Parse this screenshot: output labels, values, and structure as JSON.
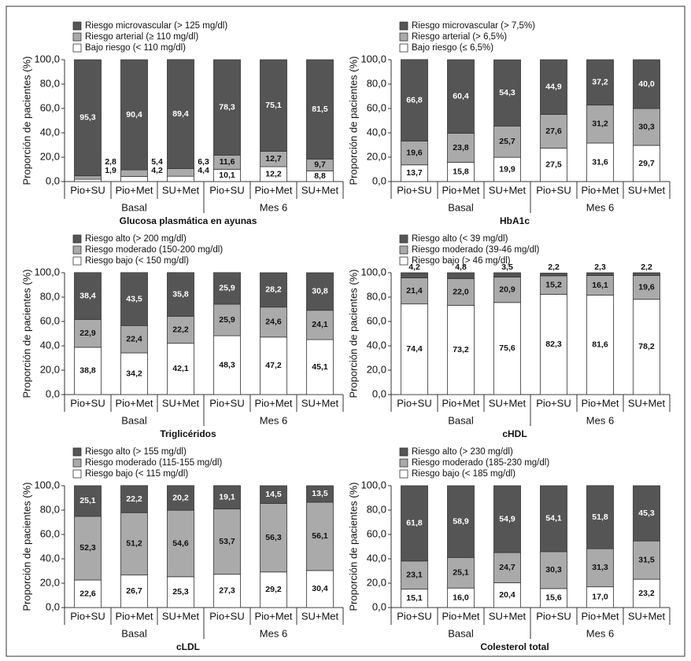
{
  "chart_data": [
    {
      "type": "bar",
      "stacked": true,
      "title": "Glucosa plasmática en ayunas",
      "ylabel": "Proporción de pacientes (%)",
      "categories": [
        "Pio+SU",
        "Pio+Met",
        "SU+Met",
        "Pio+SU",
        "Pio+Met",
        "SU+Met"
      ],
      "groups": [
        "Basal",
        "Mes 6"
      ],
      "ylim": [
        0,
        100
      ],
      "yticks": [
        {
          "value": 0,
          "label": "0,0"
        },
        {
          "value": 20,
          "label": "20,0"
        },
        {
          "value": 40,
          "label": "40,0"
        },
        {
          "value": 60,
          "label": "60,0"
        },
        {
          "value": 80,
          "label": "80,0"
        },
        {
          "value": 100,
          "label": "100,0"
        }
      ],
      "series": [
        {
          "name": "Riesgo microvascular (> 125 mg/dl)",
          "color": "#555555",
          "values": [
            95.3,
            90.4,
            89.4,
            78.3,
            75.1,
            81.5
          ],
          "value_labels": [
            "95,3",
            "90,4",
            "89,4",
            "78,3",
            "75,1",
            "81,5"
          ]
        },
        {
          "name": "Riesgo arterial (≥ 110 mg/dl)",
          "color": "#aaaaaa",
          "values": [
            2.8,
            5.4,
            6.3,
            11.6,
            12.7,
            9.7
          ],
          "value_labels": [
            "2,8",
            "5,4",
            "6,3",
            "11,6",
            "12,7",
            "9,7"
          ]
        },
        {
          "name": "Bajo riesgo (< 110 mg/dl)",
          "color": "#ffffff",
          "values": [
            1.9,
            4.2,
            4.4,
            10.1,
            12.2,
            8.8
          ],
          "value_labels": [
            "1,9",
            "4,2",
            "4,4",
            "10,1",
            "12,2",
            "8,8"
          ]
        }
      ]
    },
    {
      "type": "bar",
      "stacked": true,
      "title": "HbA1c",
      "ylabel": "Proporción de pacientes (%)",
      "categories": [
        "Pio+SU",
        "Pio+Met",
        "SU+Met",
        "Pio+SU",
        "Pio+Met",
        "SU+Met"
      ],
      "groups": [
        "Basal",
        "Mes 6"
      ],
      "ylim": [
        0,
        100
      ],
      "yticks": [
        {
          "value": 0,
          "label": "0,0"
        },
        {
          "value": 20,
          "label": "20,0"
        },
        {
          "value": 40,
          "label": "40,0"
        },
        {
          "value": 60,
          "label": "60,0"
        },
        {
          "value": 80,
          "label": "80,0"
        },
        {
          "value": 100,
          "label": "100,0"
        }
      ],
      "series": [
        {
          "name": "Riesgo microvascular (> 7,5%)",
          "color": "#555555",
          "values": [
            66.8,
            60.4,
            54.3,
            44.9,
            37.2,
            40.0
          ],
          "value_labels": [
            "66,8",
            "60,4",
            "54,3",
            "44,9",
            "37,2",
            "40,0"
          ]
        },
        {
          "name": "Riesgo arterial (> 6,5%)",
          "color": "#aaaaaa",
          "values": [
            19.6,
            23.8,
            25.7,
            27.6,
            31.2,
            30.3
          ],
          "value_labels": [
            "19,6",
            "23,8",
            "25,7",
            "27,6",
            "31,2",
            "30,3"
          ]
        },
        {
          "name": "Bajo riesgo (≤ 6,5%)",
          "color": "#ffffff",
          "values": [
            13.7,
            15.8,
            19.9,
            27.5,
            31.6,
            29.7
          ],
          "value_labels": [
            "13,7",
            "15,8",
            "19,9",
            "27,5",
            "31,6",
            "29,7"
          ]
        }
      ]
    },
    {
      "type": "bar",
      "stacked": true,
      "title": "Triglicéridos",
      "ylabel": "Proporción de pacientes (%)",
      "categories": [
        "Pio+SU",
        "Pio+Met",
        "SU+Met",
        "Pio+SU",
        "Pio+Met",
        "SU+Met"
      ],
      "groups": [
        "Basal",
        "Mes 6"
      ],
      "ylim": [
        0,
        100
      ],
      "yticks": [
        {
          "value": 0,
          "label": "0,0"
        },
        {
          "value": 20,
          "label": "20,0"
        },
        {
          "value": 40,
          "label": "40,0"
        },
        {
          "value": 60,
          "label": "60,0"
        },
        {
          "value": 80,
          "label": "80,0"
        },
        {
          "value": 100,
          "label": "100,0"
        }
      ],
      "series": [
        {
          "name": "Riesgo alto (> 200 mg/dl)",
          "color": "#555555",
          "values": [
            38.4,
            43.5,
            35.8,
            25.9,
            28.2,
            30.8
          ],
          "value_labels": [
            "38,4",
            "43,5",
            "35,8",
            "25,9",
            "28,2",
            "30,8"
          ]
        },
        {
          "name": "Riesgo moderado (150-200 mg/dl)",
          "color": "#aaaaaa",
          "values": [
            22.9,
            22.4,
            22.2,
            25.9,
            24.6,
            24.1
          ],
          "value_labels": [
            "22,9",
            "22,4",
            "22,2",
            "25,9",
            "24,6",
            "24,1"
          ]
        },
        {
          "name": "Riesgo bajo (< 150 mg/dl)",
          "color": "#ffffff",
          "values": [
            38.8,
            34.2,
            42.1,
            48.3,
            47.2,
            45.1
          ],
          "value_labels": [
            "38,8",
            "34,2",
            "42,1",
            "48,3",
            "47,2",
            "45,1"
          ]
        }
      ]
    },
    {
      "type": "bar",
      "stacked": true,
      "title": "cHDL",
      "ylabel": "Proporción de pacientes (%)",
      "categories": [
        "Pio+SU",
        "Pio+Met",
        "SU+Met",
        "Pio+SU",
        "Pio+Met",
        "SU+Met"
      ],
      "groups": [
        "Basal",
        "Mes 6"
      ],
      "ylim": [
        0,
        100
      ],
      "yticks": [
        {
          "value": 0,
          "label": "0,0"
        },
        {
          "value": 20,
          "label": "20,0"
        },
        {
          "value": 40,
          "label": "40,0"
        },
        {
          "value": 60,
          "label": "60,0"
        },
        {
          "value": 80,
          "label": "80,0"
        },
        {
          "value": 100,
          "label": "100,0"
        }
      ],
      "series": [
        {
          "name": "Riesgo alto (< 39 mg/dl)",
          "color": "#555555",
          "values": [
            4.2,
            4.8,
            3.5,
            2.2,
            2.3,
            2.2
          ],
          "value_labels": [
            "4,2",
            "4,8",
            "3,5",
            "2,2",
            "2,3",
            "2,2"
          ]
        },
        {
          "name": "Riesgo moderado (39-46 mg/dl)",
          "color": "#aaaaaa",
          "values": [
            21.4,
            22.0,
            20.9,
            15.2,
            16.1,
            19.6
          ],
          "value_labels": [
            "21,4",
            "22,0",
            "20,9",
            "15,2",
            "16,1",
            "19,6"
          ]
        },
        {
          "name": "Riesgo bajo (> 46 mg/dl)",
          "color": "#ffffff",
          "values": [
            74.4,
            73.2,
            75.6,
            82.3,
            81.6,
            78.2
          ],
          "value_labels": [
            "74,4",
            "73,2",
            "75,6",
            "82,3",
            "81,6",
            "78,2"
          ]
        }
      ]
    },
    {
      "type": "bar",
      "stacked": true,
      "title": "cLDL",
      "ylabel": "Proporción de pacientes (%)",
      "categories": [
        "Pio+SU",
        "Pio+Met",
        "SU+Met",
        "Pio+SU",
        "Pio+Met",
        "SU+Met"
      ],
      "groups": [
        "Basal",
        "Mes 6"
      ],
      "ylim": [
        0,
        100
      ],
      "yticks": [
        {
          "value": 0,
          "label": "0,0"
        },
        {
          "value": 20,
          "label": "20,0"
        },
        {
          "value": 40,
          "label": "40,0"
        },
        {
          "value": 60,
          "label": "60,0"
        },
        {
          "value": 80,
          "label": "80,0"
        },
        {
          "value": 100,
          "label": "100,0"
        }
      ],
      "series": [
        {
          "name": "Riesgo alto (> 155 mg/dl)",
          "color": "#555555",
          "values": [
            25.1,
            22.2,
            20.2,
            19.1,
            14.5,
            13.5
          ],
          "value_labels": [
            "25,1",
            "22,2",
            "20,2",
            "19,1",
            "14,5",
            "13,5"
          ]
        },
        {
          "name": "Riesgo moderado (115-155 mg/dl)",
          "color": "#aaaaaa",
          "values": [
            52.3,
            51.2,
            54.6,
            53.7,
            56.3,
            56.1
          ],
          "value_labels": [
            "52,3",
            "51,2",
            "54,6",
            "53,7",
            "56,3",
            "56,1"
          ]
        },
        {
          "name": "Riesgo bajo (< 115 mg/dl)",
          "color": "#ffffff",
          "values": [
            22.6,
            26.7,
            25.3,
            27.3,
            29.2,
            30.4
          ],
          "value_labels": [
            "22,6",
            "26,7",
            "25,3",
            "27,3",
            "29,2",
            "30,4"
          ]
        }
      ]
    },
    {
      "type": "bar",
      "stacked": true,
      "title": "Colesterol total",
      "ylabel": "Proporción de pacientes (%)",
      "categories": [
        "Pio+SU",
        "Pio+Met",
        "SU+Met",
        "Pio+SU",
        "Pio+Met",
        "SU+Met"
      ],
      "groups": [
        "Basal",
        "Mes 6"
      ],
      "ylim": [
        0,
        100
      ],
      "yticks": [
        {
          "value": 0,
          "label": "0,0"
        },
        {
          "value": 20,
          "label": "20,0"
        },
        {
          "value": 40,
          "label": "40,0"
        },
        {
          "value": 60,
          "label": "60,0"
        },
        {
          "value": 80,
          "label": "80,0"
        },
        {
          "value": 100,
          "label": "100,0"
        }
      ],
      "series": [
        {
          "name": "Riesgo alto (> 230 mg/dl)",
          "color": "#555555",
          "values": [
            61.8,
            58.9,
            54.9,
            54.1,
            51.8,
            45.3
          ],
          "value_labels": [
            "61,8",
            "58,9",
            "54,9",
            "54,1",
            "51,8",
            "45,3"
          ]
        },
        {
          "name": "Riesgo moderado (185-230 mg/dl)",
          "color": "#aaaaaa",
          "values": [
            23.1,
            25.1,
            24.7,
            30.3,
            31.3,
            31.5
          ],
          "value_labels": [
            "23,1",
            "25,1",
            "24,7",
            "30,3",
            "31,3",
            "31,5"
          ]
        },
        {
          "name": "Riesgo bajo (< 185 mg/dl)",
          "color": "#ffffff",
          "values": [
            15.1,
            16.0,
            20.4,
            15.6,
            17.0,
            23.2
          ],
          "value_labels": [
            "15,1",
            "16,0",
            "20,4",
            "15,6",
            "17,0",
            "23,2"
          ]
        }
      ]
    }
  ]
}
